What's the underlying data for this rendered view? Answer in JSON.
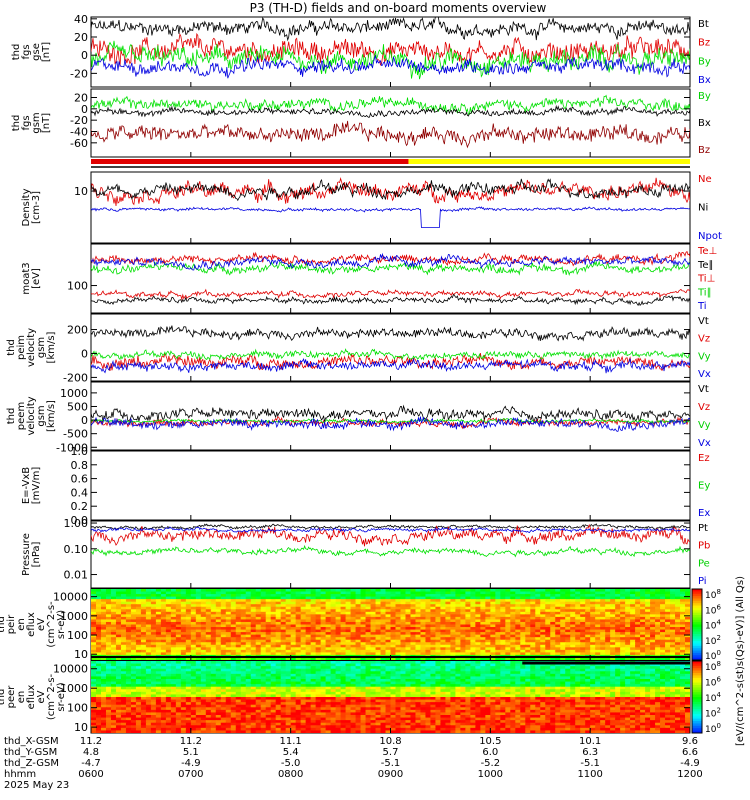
{
  "title": "P3 (TH-D) fields and on-board moments overview",
  "date_label": "2025 May 23",
  "colors": {
    "black": "#000000",
    "red": "#e00000",
    "green": "#00e000",
    "blue": "#0000e0",
    "darkred": "#900000"
  },
  "chart_data": [
    {
      "type": "line",
      "ylabel": [
        "thd",
        "fgs",
        "gse",
        "[nT]"
      ],
      "ylim": [
        -35,
        42
      ],
      "yticks": [
        40,
        20,
        0,
        -20
      ],
      "log": false,
      "series": [
        {
          "name": "Bt",
          "color": "black",
          "level": 30,
          "amp": 8
        },
        {
          "name": "Bz",
          "color": "red",
          "level": 5,
          "amp": 12
        },
        {
          "name": "By",
          "color": "green",
          "level": -5,
          "amp": 12
        },
        {
          "name": "Bx",
          "color": "blue",
          "level": -12,
          "amp": 8
        }
      ]
    },
    {
      "type": "line",
      "ylabel": [
        "thd",
        "fgs",
        "gsm",
        "[nT]"
      ],
      "ylim": [
        -85,
        35
      ],
      "yticks": [
        20,
        0,
        -20,
        -40,
        -60
      ],
      "log": false,
      "series": [
        {
          "name": "By",
          "color": "green",
          "level": 8,
          "amp": 10
        },
        {
          "name": "Bx",
          "color": "black",
          "level": -5,
          "amp": 6
        },
        {
          "name": "Bz",
          "color": "darkred",
          "level": -45,
          "amp": 15
        }
      ]
    },
    {
      "type": "bar",
      "label": "mode bar",
      "segments": [
        {
          "color": "red",
          "from": 0,
          "to": 0.53
        },
        {
          "color": "#ffff00",
          "from": 0.53,
          "to": 1
        }
      ]
    },
    {
      "type": "line",
      "ylabel": [
        "Density",
        "[cm-3]"
      ],
      "ylim": [
        0.5,
        30
      ],
      "yticks": [
        10
      ],
      "log": true,
      "series": [
        {
          "name": "Ne",
          "color": "red",
          "level": 10,
          "amp": 0.25
        },
        {
          "name": "Ni",
          "color": "black",
          "level": 11,
          "amp": 0.2
        },
        {
          "name": "Npot",
          "color": "blue",
          "level": 3.5,
          "amp": 0.05
        }
      ]
    },
    {
      "type": "line",
      "ylabel": [
        "moat3",
        "[eV]"
      ],
      "ylim": [
        40,
        400
      ],
      "yticks": [
        100
      ],
      "log": true,
      "series": [
        {
          "name": "Te⊥",
          "color": "red",
          "level": 75,
          "amp": 0.05
        },
        {
          "name": "Te∥",
          "color": "black",
          "level": 62,
          "amp": 0.05
        },
        {
          "name": "Ti⊥",
          "color": "red",
          "level": 240,
          "amp": 0.08
        },
        {
          "name": "Ti∥",
          "color": "green",
          "level": 180,
          "amp": 0.08
        },
        {
          "name": "Ti",
          "color": "blue",
          "level": 220,
          "amp": 0.08
        }
      ]
    },
    {
      "type": "line",
      "ylabel": [
        "thd",
        "peim",
        "velocity",
        "gsm",
        "[km/s]"
      ],
      "ylim": [
        -230,
        330
      ],
      "yticks": [
        200,
        0,
        -200
      ],
      "log": false,
      "series": [
        {
          "name": "Vt",
          "color": "black",
          "level": 170,
          "amp": 40
        },
        {
          "name": "Vz",
          "color": "red",
          "level": -70,
          "amp": 50
        },
        {
          "name": "Vy",
          "color": "green",
          "level": -10,
          "amp": 30
        },
        {
          "name": "Vx",
          "color": "blue",
          "level": -100,
          "amp": 40
        }
      ]
    },
    {
      "type": "line",
      "ylabel": [
        "thd",
        "peem",
        "velocity",
        "gsm",
        "[km/s]"
      ],
      "ylim": [
        -1100,
        1400
      ],
      "yticks": [
        1000,
        500,
        0,
        -500,
        -1000
      ],
      "log": false,
      "series": [
        {
          "name": "Vt",
          "color": "black",
          "level": 200,
          "amp": 200
        },
        {
          "name": "Vz",
          "color": "red",
          "level": -80,
          "amp": 120
        },
        {
          "name": "Vy",
          "color": "green",
          "level": -30,
          "amp": 60
        },
        {
          "name": "Vx",
          "color": "blue",
          "level": -120,
          "amp": 180
        }
      ]
    },
    {
      "type": "line",
      "ylabel": [
        "E=-VxB",
        "[mV/m]"
      ],
      "ylim": [
        0,
        1
      ],
      "yticks": [
        1.0,
        0.8,
        0.6,
        0.4,
        0.2,
        0.0
      ],
      "log": false,
      "series": [
        {
          "name": "Ez",
          "color": "red"
        },
        {
          "name": "Ey",
          "color": "green"
        },
        {
          "name": "Ex",
          "color": "blue"
        }
      ]
    },
    {
      "type": "line",
      "ylabel": [
        "Pressure",
        "[nPa]"
      ],
      "ylim": [
        0.003,
        1.2
      ],
      "yticks": [
        1.0,
        0.1,
        0.01
      ],
      "log": true,
      "series": [
        {
          "name": "Pt",
          "color": "black",
          "level": 0.7,
          "amp": 0.08
        },
        {
          "name": "Pb",
          "color": "red",
          "level": 0.35,
          "amp": 0.3
        },
        {
          "name": "Pe",
          "color": "green",
          "level": 0.08,
          "amp": 0.15
        },
        {
          "name": "Pi",
          "color": "blue",
          "level": 0.55,
          "amp": 0.08
        }
      ]
    },
    {
      "type": "heatmap",
      "ylabel": [
        "thd",
        "peir",
        "en",
        "eflux",
        "eV",
        "(cm^2-s-",
        "sr-eV)"
      ],
      "ylim": [
        5,
        25000
      ],
      "yticks": [
        10000,
        1000,
        100,
        10
      ],
      "log": true,
      "cbar_ticks": [
        "10^8",
        "10^6",
        "10^4",
        "10^2",
        "10^0"
      ]
    },
    {
      "type": "heatmap",
      "ylabel": [
        "thd",
        "peer",
        "en",
        "eflux",
        "eV",
        "(cm^2-s-",
        "sr-eV)"
      ],
      "ylim": [
        5,
        25000
      ],
      "yticks": [
        10000,
        1000,
        100,
        10
      ],
      "log": true,
      "cbar_ticks": [
        "10^8",
        "10^6",
        "10^4",
        "10^2",
        "10^0"
      ]
    }
  ],
  "colorbar_label": "[eV/(cm^2-s(st)s(Qs)-eV)] (All Qs)",
  "x_axis": {
    "row_labels": [
      "thd_X-GSM",
      "thd_Y-GSM",
      "thd_Z-GSM",
      "hhmm",
      "2025 May 23"
    ],
    "columns": [
      {
        "x": "11.2",
        "y": "4.8",
        "z": "-4.7",
        "t": "0600"
      },
      {
        "x": "11.2",
        "y": "5.1",
        "z": "-4.9",
        "t": "0700"
      },
      {
        "x": "11.1",
        "y": "5.4",
        "z": "-5.0",
        "t": "0800"
      },
      {
        "x": "10.8",
        "y": "5.7",
        "z": "-5.1",
        "t": "0900"
      },
      {
        "x": "10.5",
        "y": "6.0",
        "z": "-5.2",
        "t": "1000"
      },
      {
        "x": "10.1",
        "y": "6.3",
        "z": "-5.1",
        "t": "1100"
      },
      {
        "x": "9.6",
        "y": "6.6",
        "z": "-4.9",
        "t": "1200"
      }
    ]
  }
}
